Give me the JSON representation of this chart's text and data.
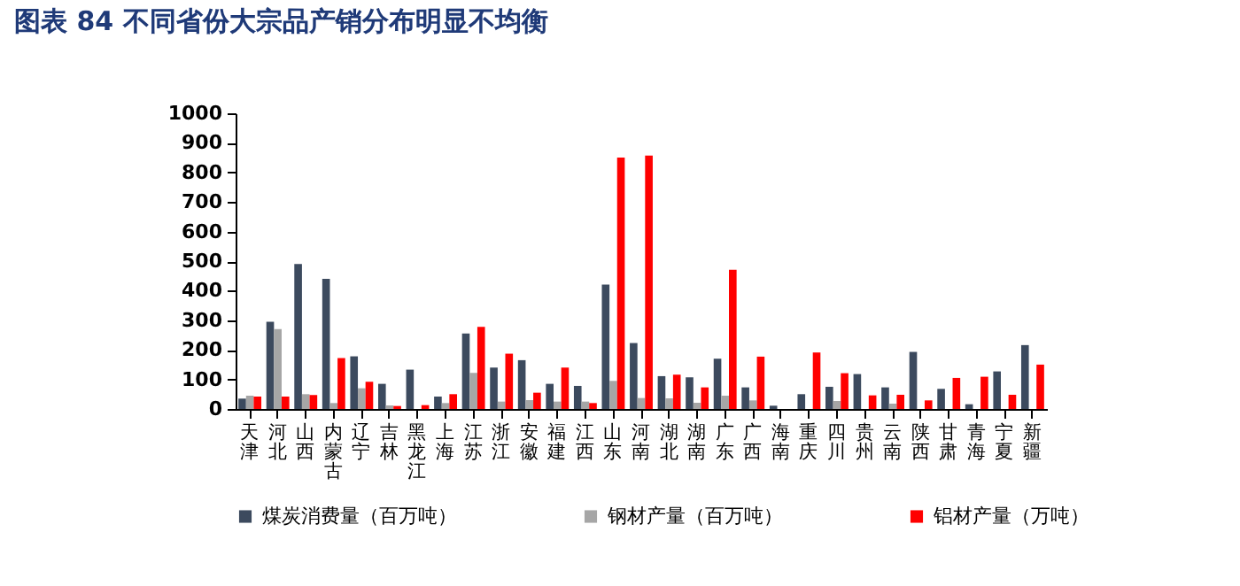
{
  "chart_data": {
    "type": "bar",
    "title": "图表 84    不同省份大宗品产销分布明显不均衡",
    "categories": [
      "天津",
      "河北",
      "山西",
      "内蒙古",
      "辽宁",
      "吉林",
      "黑龙江",
      "上海",
      "江苏",
      "浙江",
      "安徽",
      "福建",
      "江西",
      "山东",
      "河南",
      "湖北",
      "湖南",
      "广东",
      "广西",
      "海南",
      "重庆",
      "四川",
      "贵州",
      "云南",
      "陕西",
      "甘肃",
      "青海",
      "宁夏",
      "新疆"
    ],
    "series": [
      {
        "name": "煤炭消费量（百万吨）",
        "color": "#3c4a5e",
        "values": [
          35,
          295,
          490,
          440,
          178,
          85,
          133,
          42,
          255,
          140,
          165,
          85,
          78,
          421,
          223,
          111,
          107,
          170,
          73,
          11,
          50,
          75,
          118,
          73,
          193,
          68,
          16,
          127,
          216
        ]
      },
      {
        "name": "钢材产量（百万吨）",
        "color": "#a6a6a6",
        "values": [
          45,
          270,
          50,
          20,
          70,
          12,
          0,
          20,
          122,
          25,
          30,
          25,
          25,
          95,
          37,
          36,
          21,
          45,
          29,
          0,
          0,
          27,
          0,
          18,
          0,
          0,
          0,
          0,
          0
        ]
      },
      {
        "name": "铝材产量（万吨）",
        "color": "#ff0000",
        "values": [
          42,
          42,
          47,
          172,
          92,
          10,
          13,
          50,
          278,
          187,
          55,
          140,
          20,
          850,
          857,
          116,
          73,
          471,
          177,
          0,
          191,
          121,
          46,
          48,
          29,
          105,
          109,
          48,
          150
        ]
      }
    ],
    "ylim": [
      0,
      1000
    ],
    "yticks": [
      0,
      100,
      200,
      300,
      400,
      500,
      600,
      700,
      800,
      900,
      1000
    ],
    "legend": "bottom"
  }
}
